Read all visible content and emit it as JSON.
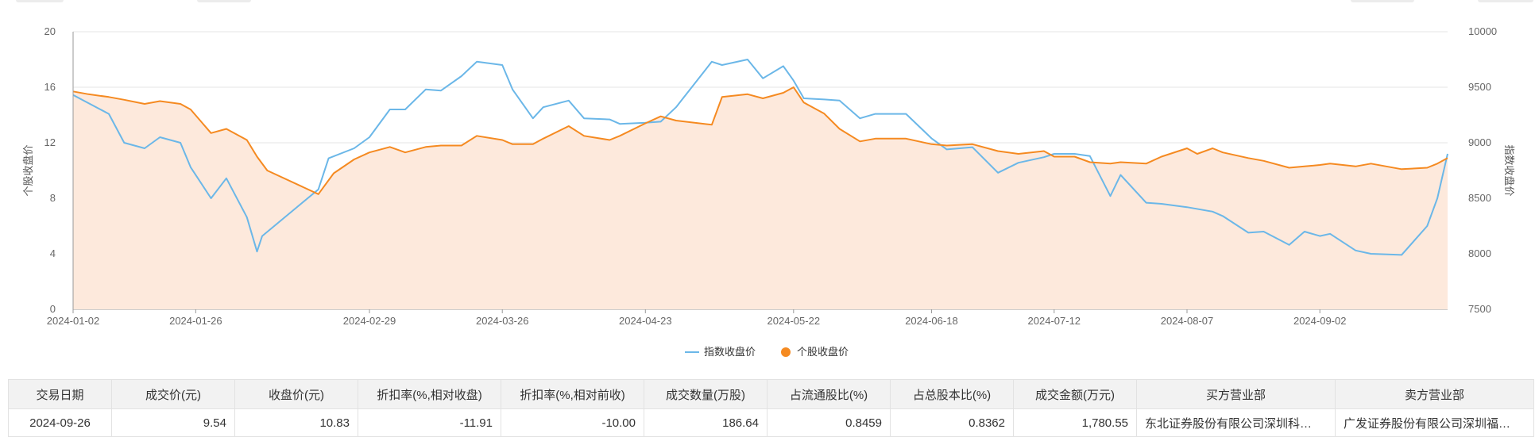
{
  "top_stubs": [
    {
      "left": 20,
      "width": 60
    },
    {
      "left": 248,
      "width": 68
    },
    {
      "left": 1700,
      "width": 80
    },
    {
      "left": 1860,
      "width": 70
    }
  ],
  "chart_data": {
    "type": "line",
    "x_axis": {
      "start": "2024-01-02",
      "end": "2024-09-27",
      "tick_labels": [
        "2024-01-02",
        "2024-01-26",
        "2024-02-29",
        "2024-03-26",
        "2024-04-23",
        "2024-05-22",
        "2024-06-18",
        "2024-07-12",
        "2024-08-07",
        "2024-09-02"
      ]
    },
    "y_left": {
      "name": "个股收盘价",
      "min": 0,
      "max": 20,
      "ticks": [
        0,
        4,
        8,
        12,
        16,
        20
      ]
    },
    "y_right": {
      "name": "指数收盘价",
      "min": 7500,
      "max": 10000,
      "ticks": [
        7500,
        8000,
        8500,
        9000,
        9500,
        10000
      ]
    },
    "grid": true,
    "legend_position": "bottom-center",
    "colors": {
      "index": "#6bb7e8",
      "stock": "#f58a21",
      "stock_area": "#fde9dc",
      "grid": "#e6e6e6",
      "axis": "#999999"
    },
    "series": [
      {
        "name": "指数收盘价",
        "axis": "right",
        "color": "#6bb7e8",
        "points": [
          [
            "2024-01-02",
            9430
          ],
          [
            "2024-01-09",
            9260
          ],
          [
            "2024-01-12",
            9000
          ],
          [
            "2024-01-16",
            8950
          ],
          [
            "2024-01-19",
            9050
          ],
          [
            "2024-01-23",
            9000
          ],
          [
            "2024-01-25",
            8780
          ],
          [
            "2024-01-29",
            8500
          ],
          [
            "2024-02-01",
            8680
          ],
          [
            "2024-02-05",
            8330
          ],
          [
            "2024-02-07",
            8020
          ],
          [
            "2024-02-08",
            8160
          ],
          [
            "2024-02-19",
            8580
          ],
          [
            "2024-02-21",
            8860
          ],
          [
            "2024-02-26",
            8950
          ],
          [
            "2024-02-29",
            9050
          ],
          [
            "2024-03-04",
            9300
          ],
          [
            "2024-03-07",
            9300
          ],
          [
            "2024-03-11",
            9480
          ],
          [
            "2024-03-14",
            9470
          ],
          [
            "2024-03-18",
            9600
          ],
          [
            "2024-03-21",
            9730
          ],
          [
            "2024-03-26",
            9700
          ],
          [
            "2024-03-28",
            9480
          ],
          [
            "2024-04-01",
            9220
          ],
          [
            "2024-04-03",
            9320
          ],
          [
            "2024-04-08",
            9380
          ],
          [
            "2024-04-11",
            9220
          ],
          [
            "2024-04-16",
            9210
          ],
          [
            "2024-04-18",
            9170
          ],
          [
            "2024-04-23",
            9180
          ],
          [
            "2024-04-26",
            9190
          ],
          [
            "2024-04-29",
            9320
          ],
          [
            "2024-05-06",
            9730
          ],
          [
            "2024-05-08",
            9700
          ],
          [
            "2024-05-13",
            9750
          ],
          [
            "2024-05-16",
            9580
          ],
          [
            "2024-05-20",
            9690
          ],
          [
            "2024-05-22",
            9560
          ],
          [
            "2024-05-24",
            9400
          ],
          [
            "2024-05-28",
            9390
          ],
          [
            "2024-05-31",
            9380
          ],
          [
            "2024-06-04",
            9220
          ],
          [
            "2024-06-07",
            9260
          ],
          [
            "2024-06-13",
            9260
          ],
          [
            "2024-06-18",
            9040
          ],
          [
            "2024-06-21",
            8940
          ],
          [
            "2024-06-26",
            8960
          ],
          [
            "2024-07-01",
            8730
          ],
          [
            "2024-07-05",
            8820
          ],
          [
            "2024-07-10",
            8870
          ],
          [
            "2024-07-12",
            8900
          ],
          [
            "2024-07-16",
            8900
          ],
          [
            "2024-07-19",
            8880
          ],
          [
            "2024-07-23",
            8520
          ],
          [
            "2024-07-25",
            8710
          ],
          [
            "2024-07-30",
            8460
          ],
          [
            "2024-08-02",
            8450
          ],
          [
            "2024-08-07",
            8420
          ],
          [
            "2024-08-12",
            8380
          ],
          [
            "2024-08-14",
            8340
          ],
          [
            "2024-08-19",
            8190
          ],
          [
            "2024-08-22",
            8200
          ],
          [
            "2024-08-27",
            8080
          ],
          [
            "2024-08-30",
            8200
          ],
          [
            "2024-09-02",
            8160
          ],
          [
            "2024-09-04",
            8180
          ],
          [
            "2024-09-09",
            8030
          ],
          [
            "2024-09-12",
            8000
          ],
          [
            "2024-09-18",
            7990
          ],
          [
            "2024-09-23",
            8250
          ],
          [
            "2024-09-25",
            8500
          ],
          [
            "2024-09-27",
            8900
          ]
        ]
      },
      {
        "name": "个股收盘价",
        "axis": "left",
        "color": "#f58a21",
        "points": [
          [
            "2024-01-02",
            15.7
          ],
          [
            "2024-01-05",
            15.5
          ],
          [
            "2024-01-09",
            15.3
          ],
          [
            "2024-01-12",
            15.1
          ],
          [
            "2024-01-16",
            14.8
          ],
          [
            "2024-01-19",
            15.0
          ],
          [
            "2024-01-23",
            14.8
          ],
          [
            "2024-01-25",
            14.4
          ],
          [
            "2024-01-29",
            12.7
          ],
          [
            "2024-02-01",
            13.0
          ],
          [
            "2024-02-05",
            12.2
          ],
          [
            "2024-02-07",
            11.0
          ],
          [
            "2024-02-09",
            10.0
          ],
          [
            "2024-02-19",
            8.3
          ],
          [
            "2024-02-22",
            9.8
          ],
          [
            "2024-02-26",
            10.8
          ],
          [
            "2024-02-29",
            11.3
          ],
          [
            "2024-03-04",
            11.7
          ],
          [
            "2024-03-07",
            11.3
          ],
          [
            "2024-03-11",
            11.7
          ],
          [
            "2024-03-14",
            11.8
          ],
          [
            "2024-03-18",
            11.8
          ],
          [
            "2024-03-21",
            12.5
          ],
          [
            "2024-03-26",
            12.2
          ],
          [
            "2024-03-28",
            11.9
          ],
          [
            "2024-04-01",
            11.9
          ],
          [
            "2024-04-03",
            12.3
          ],
          [
            "2024-04-08",
            13.2
          ],
          [
            "2024-04-11",
            12.5
          ],
          [
            "2024-04-16",
            12.2
          ],
          [
            "2024-04-18",
            12.5
          ],
          [
            "2024-04-23",
            13.4
          ],
          [
            "2024-04-26",
            13.9
          ],
          [
            "2024-04-29",
            13.6
          ],
          [
            "2024-05-06",
            13.3
          ],
          [
            "2024-05-08",
            15.3
          ],
          [
            "2024-05-13",
            15.5
          ],
          [
            "2024-05-16",
            15.2
          ],
          [
            "2024-05-20",
            15.6
          ],
          [
            "2024-05-22",
            16.0
          ],
          [
            "2024-05-24",
            14.9
          ],
          [
            "2024-05-28",
            14.1
          ],
          [
            "2024-05-31",
            13.0
          ],
          [
            "2024-06-04",
            12.1
          ],
          [
            "2024-06-07",
            12.3
          ],
          [
            "2024-06-13",
            12.3
          ],
          [
            "2024-06-18",
            11.9
          ],
          [
            "2024-06-21",
            11.8
          ],
          [
            "2024-06-26",
            11.9
          ],
          [
            "2024-07-01",
            11.4
          ],
          [
            "2024-07-05",
            11.2
          ],
          [
            "2024-07-10",
            11.4
          ],
          [
            "2024-07-12",
            11.0
          ],
          [
            "2024-07-16",
            11.0
          ],
          [
            "2024-07-19",
            10.6
          ],
          [
            "2024-07-23",
            10.5
          ],
          [
            "2024-07-25",
            10.6
          ],
          [
            "2024-07-30",
            10.5
          ],
          [
            "2024-08-02",
            11.0
          ],
          [
            "2024-08-07",
            11.6
          ],
          [
            "2024-08-09",
            11.2
          ],
          [
            "2024-08-12",
            11.6
          ],
          [
            "2024-08-14",
            11.3
          ],
          [
            "2024-08-19",
            10.9
          ],
          [
            "2024-08-22",
            10.7
          ],
          [
            "2024-08-27",
            10.2
          ],
          [
            "2024-08-30",
            10.3
          ],
          [
            "2024-09-02",
            10.4
          ],
          [
            "2024-09-04",
            10.5
          ],
          [
            "2024-09-09",
            10.3
          ],
          [
            "2024-09-12",
            10.5
          ],
          [
            "2024-09-18",
            10.1
          ],
          [
            "2024-09-23",
            10.2
          ],
          [
            "2024-09-25",
            10.5
          ],
          [
            "2024-09-27",
            10.9
          ]
        ]
      }
    ]
  },
  "table": {
    "headers": [
      "交易日期",
      "成交价(元)",
      "收盘价(元)",
      "折扣率(%,相对收盘)",
      "折扣率(%,相对前收)",
      "成交数量(万股)",
      "占流通股比(%)",
      "占总股本比(%)",
      "成交金额(万元)",
      "买方营业部",
      "卖方营业部"
    ],
    "rows": [
      [
        "2024-09-26",
        "9.54",
        "10.83",
        "-11.91",
        "-10.00",
        "186.64",
        "0.8459",
        "0.8362",
        "1,780.55",
        "东北证券股份有限公司深圳科…",
        "广发证券股份有限公司深圳福…"
      ]
    ]
  }
}
